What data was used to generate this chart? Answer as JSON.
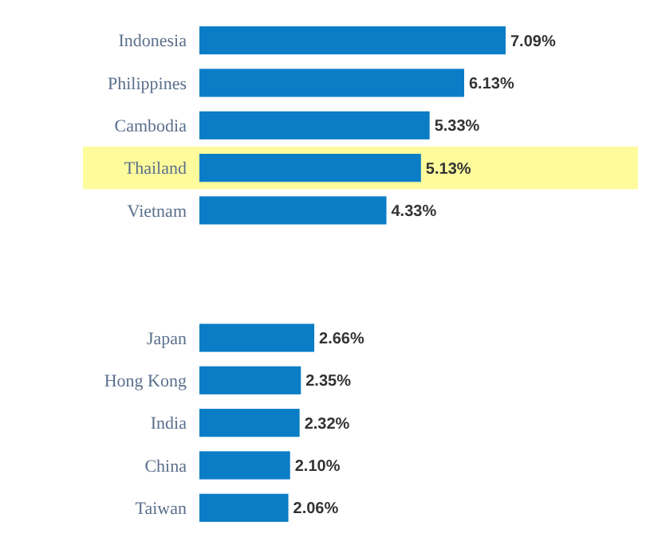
{
  "chart_data": {
    "type": "bar",
    "orientation": "horizontal",
    "categories": [
      "Indonesia",
      "Philippines",
      "Cambodia",
      "Thailand",
      "Vietnam",
      null,
      null,
      "Japan",
      "Hong Kong",
      "India",
      "China",
      "Taiwan"
    ],
    "values": [
      7.09,
      6.13,
      5.33,
      5.13,
      4.33,
      null,
      null,
      2.66,
      2.35,
      2.32,
      2.1,
      2.06
    ],
    "value_labels": [
      "7.09%",
      "6.13%",
      "5.33%",
      "5.13%",
      "4.33%",
      null,
      null,
      "2.66%",
      "2.35%",
      "2.32%",
      "2.10%",
      "2.06%"
    ],
    "color": "#0b7dc6",
    "bands": [
      {
        "axis": "y",
        "from": "Thailand",
        "to": "Thailand",
        "color": "#fdfb9c"
      }
    ],
    "grid": false
  }
}
